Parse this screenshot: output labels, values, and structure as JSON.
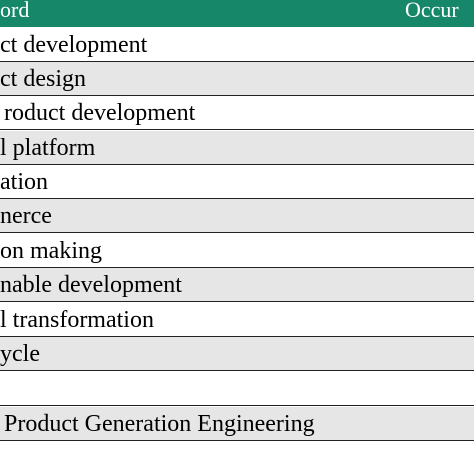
{
  "table": {
    "header": [
      "ord",
      "Occur"
    ],
    "rows": [
      "ct development",
      "ct design",
      "roduct development",
      "l platform",
      "ation",
      "nerce",
      "on making",
      "nable development",
      "l transformation",
      "ycle",
      "Product Generation Engineering"
    ]
  }
}
